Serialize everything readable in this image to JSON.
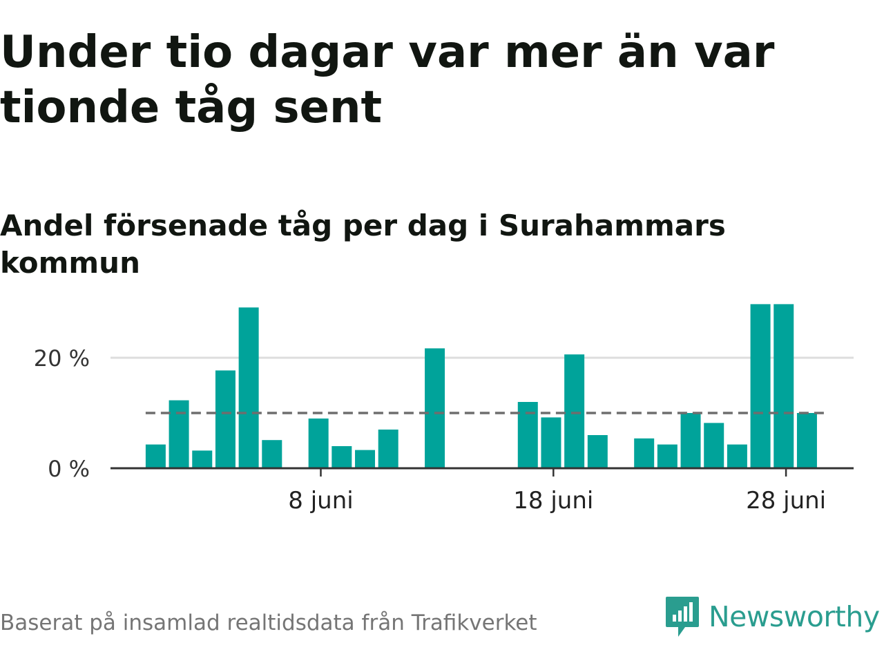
{
  "header": {
    "title": "Under tio dagar var mer än var tionde tåg sent",
    "subtitle": "Andel försenade tåg per dag i Surahammars kommun"
  },
  "footer": {
    "source": "Baserat på insamlad realtidsdata från Trafikverket",
    "brand": "Newsworthy",
    "brand_icon": "bar-chart-speech-bubble-icon"
  },
  "colors": {
    "bar": "#00a39a",
    "reference_line": "#6e6e6e",
    "grid": "#dddddd",
    "axis": "#333333",
    "brand": "#2a9d8f"
  },
  "chart_data": {
    "type": "bar",
    "x_unit": "day of June",
    "x": [
      1,
      2,
      3,
      4,
      5,
      6,
      7,
      8,
      9,
      10,
      11,
      12,
      13,
      14,
      15,
      16,
      17,
      18,
      19,
      20,
      21,
      22,
      23,
      24,
      25,
      26,
      27,
      28,
      29,
      30
    ],
    "values": [
      4.3,
      12.3,
      3.2,
      17.7,
      29.1,
      5.1,
      null,
      9.0,
      4.0,
      3.3,
      7.0,
      null,
      21.7,
      null,
      null,
      null,
      12.0,
      9.2,
      20.6,
      6.0,
      null,
      5.4,
      4.3,
      10.0,
      8.2,
      4.3,
      29.7,
      29.7,
      10.0,
      null
    ],
    "ylim": [
      0,
      30
    ],
    "yticks": [
      {
        "value": 0,
        "label": "0 %"
      },
      {
        "value": 20,
        "label": "20 %"
      }
    ],
    "xticks": [
      {
        "value": 8,
        "label": "8 juni"
      },
      {
        "value": 18,
        "label": "18 juni"
      },
      {
        "value": 28,
        "label": "28 juni"
      }
    ],
    "reference_line": {
      "value": 10,
      "style": "dashed"
    },
    "grid": true,
    "legend": "none"
  }
}
